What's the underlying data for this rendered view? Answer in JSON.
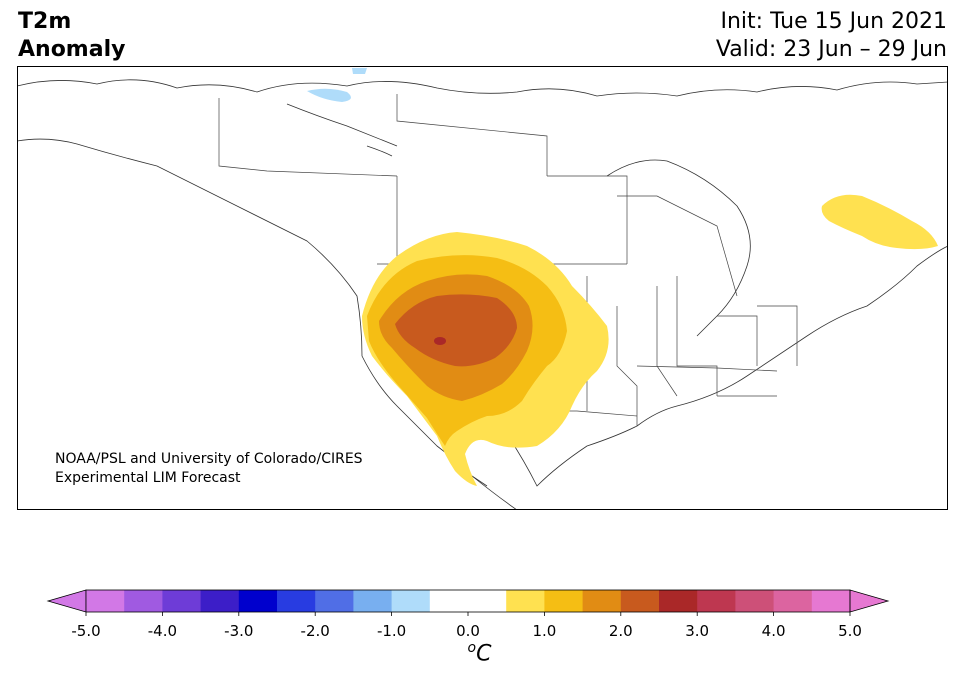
{
  "title": {
    "line1": "T2m",
    "line2": "Anomaly"
  },
  "dates": {
    "init": "Init: Tue 15 Jun 2021",
    "valid": "Valid: 23 Jun – 29 Jun"
  },
  "credit": {
    "line1": "NOAA/PSL and University of Colorado/CIRES",
    "line2": "Experimental LIM Forecast"
  },
  "colorbar": {
    "tick_labels": [
      "-5.0",
      "-4.0",
      "-3.0",
      "-2.0",
      "-1.0",
      "0.0",
      "1.0",
      "2.0",
      "3.0",
      "4.0",
      "5.0"
    ],
    "units_label": "C",
    "units_sup": "o",
    "colors": [
      "#d278e6",
      "#a05ae1",
      "#6e3cd7",
      "#3c1ec8",
      "#0000cd",
      "#283ce1",
      "#506ee6",
      "#78aff0",
      "#afdcfa",
      "#ffffff",
      "#ffffff",
      "#ffe150",
      "#f5be14",
      "#e18c14",
      "#c85a1e",
      "#aa2828",
      "#be3750",
      "#cd5078",
      "#dc64a0",
      "#e678d2"
    ],
    "extend_low": "#d278e6",
    "extend_high": "#e678d2"
  },
  "map": {
    "region": "North America",
    "anomaly_colors": {
      "light_yellow": "#ffe150",
      "yellow": "#f5be14",
      "orange": "#e18c14",
      "dark_orange": "#c85a1e",
      "red": "#aa2828",
      "light_blue": "#afdcfa"
    }
  }
}
